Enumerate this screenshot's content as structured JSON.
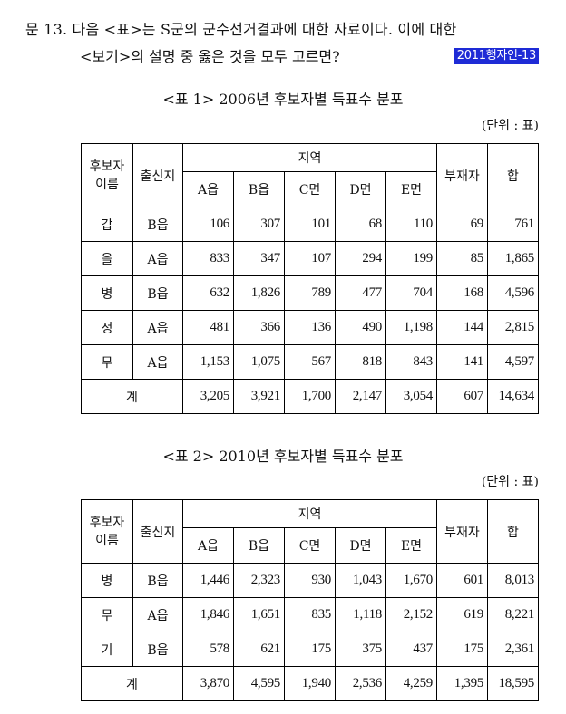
{
  "question": {
    "line1": "문 13. 다음 <표>는 S군의 군수선거결과에 대한 자료이다. 이에 대한",
    "line2": "<보기>의 설명 중 옳은 것을 모두 고르면?",
    "badge": "2011행자인-13"
  },
  "table1": {
    "caption": "<표 1> 2006년 후보자별 득표수 분포",
    "unit": "(단위 : 표)",
    "headers": {
      "candidate_line1": "후보자",
      "candidate_line2": "이름",
      "origin": "출신지",
      "region": "지역",
      "absentee": "부재자",
      "total": "합",
      "regions": [
        "A읍",
        "B읍",
        "C면",
        "D면",
        "E면"
      ]
    },
    "rows": [
      {
        "name": "갑",
        "origin": "B읍",
        "values": [
          "106",
          "307",
          "101",
          "68",
          "110"
        ],
        "absentee": "69",
        "total": "761"
      },
      {
        "name": "을",
        "origin": "A읍",
        "values": [
          "833",
          "347",
          "107",
          "294",
          "199"
        ],
        "absentee": "85",
        "total": "1,865"
      },
      {
        "name": "병",
        "origin": "B읍",
        "values": [
          "632",
          "1,826",
          "789",
          "477",
          "704"
        ],
        "absentee": "168",
        "total": "4,596"
      },
      {
        "name": "정",
        "origin": "A읍",
        "values": [
          "481",
          "366",
          "136",
          "490",
          "1,198"
        ],
        "absentee": "144",
        "total": "2,815"
      },
      {
        "name": "무",
        "origin": "A읍",
        "values": [
          "1,153",
          "1,075",
          "567",
          "818",
          "843"
        ],
        "absentee": "141",
        "total": "4,597"
      }
    ],
    "sum": {
      "label": "계",
      "values": [
        "3,205",
        "3,921",
        "1,700",
        "2,147",
        "3,054"
      ],
      "absentee": "607",
      "total": "14,634"
    }
  },
  "table2": {
    "caption": "<표 2> 2010년 후보자별 득표수 분포",
    "unit": "(단위 : 표)",
    "headers": {
      "candidate_line1": "후보자",
      "candidate_line2": "이름",
      "origin": "출신지",
      "region": "지역",
      "absentee": "부재자",
      "total": "합",
      "regions": [
        "A읍",
        "B읍",
        "C면",
        "D면",
        "E면"
      ]
    },
    "rows": [
      {
        "name": "병",
        "origin": "B읍",
        "values": [
          "1,446",
          "2,323",
          "930",
          "1,043",
          "1,670"
        ],
        "absentee": "601",
        "total": "8,013"
      },
      {
        "name": "무",
        "origin": "A읍",
        "values": [
          "1,846",
          "1,651",
          "835",
          "1,118",
          "2,152"
        ],
        "absentee": "619",
        "total": "8,221"
      },
      {
        "name": "기",
        "origin": "B읍",
        "values": [
          "578",
          "621",
          "175",
          "375",
          "437"
        ],
        "absentee": "175",
        "total": "2,361"
      }
    ],
    "sum": {
      "label": "계",
      "values": [
        "3,870",
        "4,595",
        "1,940",
        "2,536",
        "4,259"
      ],
      "absentee": "1,395",
      "total": "18,595"
    }
  }
}
